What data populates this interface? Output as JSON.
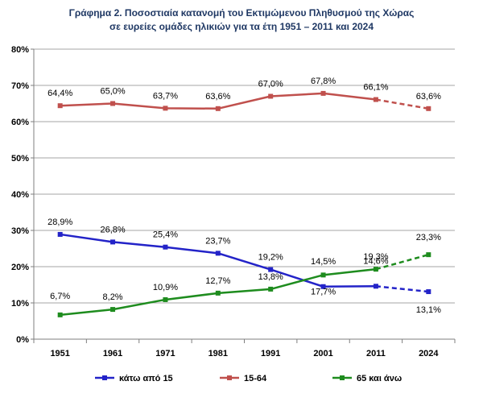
{
  "chart_data": {
    "type": "line",
    "title_line1": "Γράφημα 2. Ποσοστιαία κατανομή του Εκτιμώμενου Πληθυσμού της Χώρας",
    "title_line2": "σε ευρείες ομάδες ηλικιών για τα έτη 1951 – 2011 και 2024",
    "categories": [
      "1951",
      "1961",
      "1971",
      "1981",
      "1991",
      "2001",
      "2011",
      "2024"
    ],
    "y_ticks": [
      "0%",
      "10%",
      "20%",
      "30%",
      "40%",
      "50%",
      "60%",
      "70%",
      "80%"
    ],
    "ylim": [
      0,
      80
    ],
    "grid": true,
    "legend_position": "bottom",
    "series": [
      {
        "name": "κάτω από 15",
        "color": "#2323c8",
        "values": [
          28.9,
          26.8,
          25.4,
          23.7,
          19.2,
          14.5,
          14.6,
          13.1
        ],
        "labels": [
          "28,9%",
          "26,8%",
          "25,4%",
          "23,7%",
          "19,2%",
          "14,5%",
          "14,6%",
          "13,1%"
        ],
        "dashed_last_segment": true
      },
      {
        "name": "15-64",
        "color": "#c0504d",
        "values": [
          64.4,
          65.0,
          63.7,
          63.6,
          67.0,
          67.8,
          66.1,
          63.6
        ],
        "labels": [
          "64,4%",
          "65,0%",
          "63,7%",
          "63,6%",
          "67,0%",
          "67,8%",
          "66,1%",
          "63,6%"
        ],
        "dashed_last_segment": true
      },
      {
        "name": "65 και άνω",
        "color": "#1e8c1e",
        "values": [
          6.7,
          8.2,
          10.9,
          12.7,
          13.8,
          17.7,
          19.3,
          23.3
        ],
        "labels": [
          "6,7%",
          "8,2%",
          "10,9%",
          "12,7%",
          "13,8%",
          "17,7%",
          "19,3%",
          "23,3%"
        ],
        "dashed_last_segment": true
      }
    ]
  }
}
